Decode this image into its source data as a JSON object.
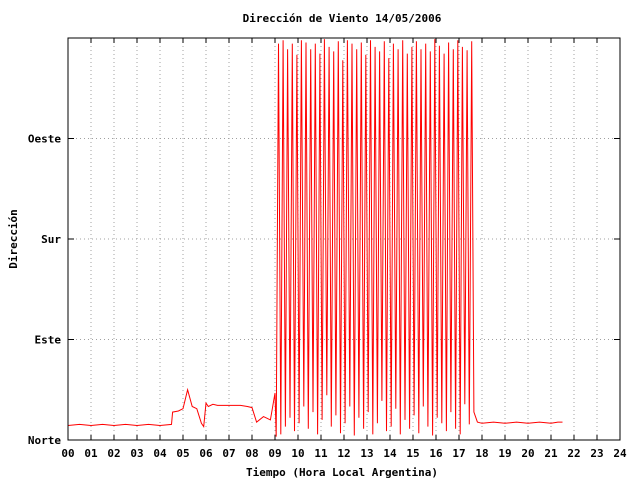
{
  "chart_data": {
    "type": "line",
    "title": "Dirección de Viento 14/05/2006",
    "xlabel": "Tiempo (Hora Local Argentina)",
    "ylabel": "Dirección",
    "x_ticks": [
      "00",
      "01",
      "02",
      "03",
      "04",
      "05",
      "06",
      "07",
      "08",
      "09",
      "10",
      "11",
      "12",
      "13",
      "14",
      "15",
      "16",
      "17",
      "18",
      "19",
      "20",
      "21",
      "22",
      "23",
      "24"
    ],
    "y_ticks": [
      {
        "value": 0,
        "label": "Norte"
      },
      {
        "value": 90,
        "label": "Este"
      },
      {
        "value": 180,
        "label": "Sur"
      },
      {
        "value": 270,
        "label": "Oeste"
      }
    ],
    "xlim": [
      0,
      24
    ],
    "ylim": [
      0,
      360
    ],
    "grid": true,
    "series_color": "#ff0000",
    "series": [
      {
        "x": [
          0.0,
          0.5,
          1.0,
          1.5,
          2.0,
          2.5,
          3.0,
          3.5,
          4.0,
          4.5,
          4.55,
          4.8,
          5.0,
          5.2,
          5.4,
          5.6,
          5.8,
          5.9,
          6.0,
          6.1,
          6.3,
          6.5,
          7.0,
          7.5,
          7.8,
          8.0,
          8.2,
          8.5,
          8.8,
          9.0,
          9.05,
          9.15,
          9.25,
          9.35,
          9.45,
          9.55,
          9.65,
          9.75,
          9.85,
          9.95,
          10.05,
          10.15,
          10.25,
          10.35,
          10.45,
          10.55,
          10.65,
          10.75,
          10.85,
          10.95,
          11.05,
          11.15,
          11.25,
          11.35,
          11.45,
          11.55,
          11.65,
          11.75,
          11.85,
          11.95,
          12.05,
          12.15,
          12.25,
          12.35,
          12.45,
          12.55,
          12.65,
          12.75,
          12.85,
          12.95,
          13.05,
          13.15,
          13.25,
          13.35,
          13.45,
          13.55,
          13.65,
          13.75,
          13.85,
          13.95,
          14.05,
          14.15,
          14.25,
          14.35,
          14.45,
          14.55,
          14.65,
          14.75,
          14.85,
          14.95,
          15.05,
          15.15,
          15.25,
          15.35,
          15.45,
          15.55,
          15.65,
          15.75,
          15.85,
          15.95,
          16.05,
          16.15,
          16.25,
          16.35,
          16.45,
          16.55,
          16.65,
          16.75,
          16.85,
          16.95,
          17.05,
          17.15,
          17.25,
          17.35,
          17.45,
          17.55,
          17.65,
          17.8,
          18.0,
          18.5,
          19.0,
          19.5,
          20.0,
          20.5,
          21.0,
          21.3,
          21.5
        ],
        "y": [
          13,
          14,
          13,
          14,
          13,
          14,
          13,
          14,
          13,
          14,
          25,
          26,
          28,
          45,
          30,
          28,
          15,
          12,
          33,
          30,
          32,
          31,
          31,
          31,
          30,
          29,
          16,
          21,
          18,
          42,
          3,
          355,
          5,
          358,
          12,
          350,
          20,
          355,
          8,
          345,
          15,
          358,
          30,
          356,
          10,
          350,
          25,
          355,
          5,
          346,
          18,
          359,
          40,
          352,
          12,
          348,
          22,
          357,
          6,
          340,
          15,
          358,
          30,
          355,
          4,
          350,
          20,
          356,
          10,
          345,
          25,
          358,
          5,
          352,
          15,
          348,
          35,
          357,
          8,
          342,
          12,
          355,
          28,
          350,
          5,
          358,
          18,
          346,
          10,
          352,
          22,
          357,
          6,
          350,
          30,
          355,
          12,
          348,
          4,
          359,
          20,
          353,
          15,
          346,
          8,
          356,
          25,
          350,
          10,
          358,
          5,
          352,
          32,
          349,
          14,
          357,
          25,
          16,
          15,
          16,
          15,
          16,
          15,
          16,
          15,
          16,
          16
        ]
      }
    ]
  }
}
